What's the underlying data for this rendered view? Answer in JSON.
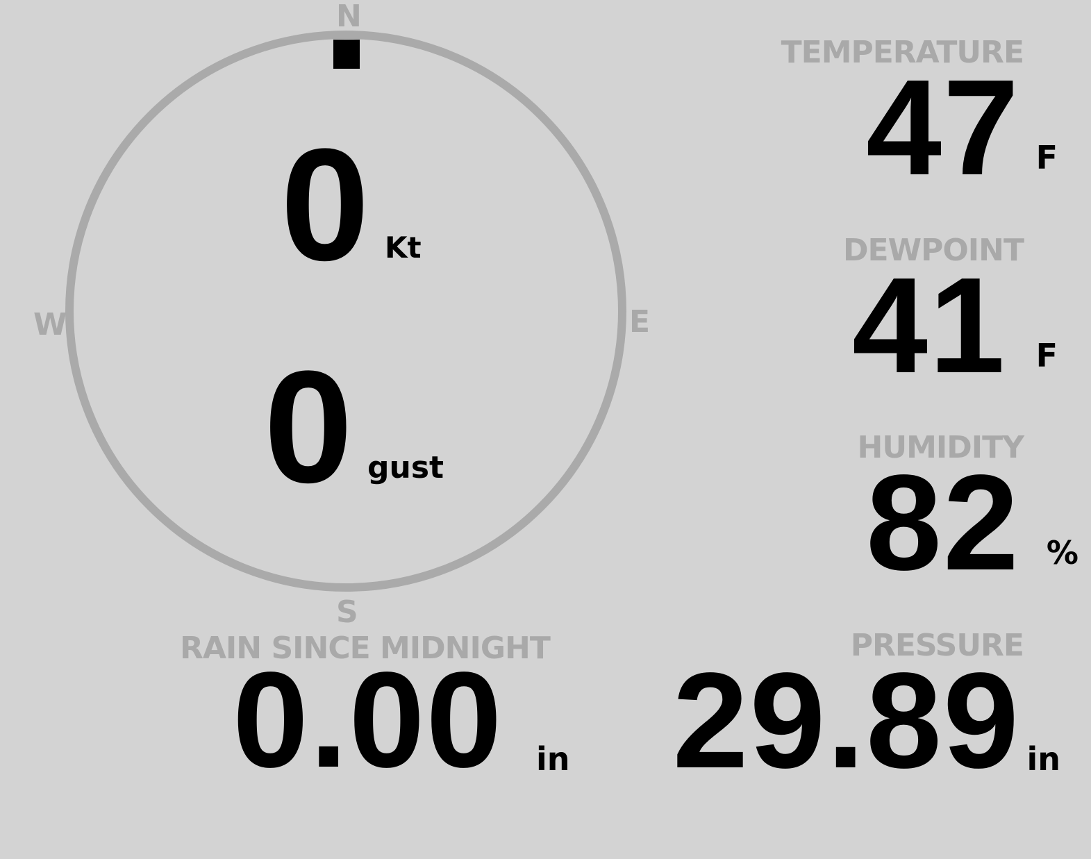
{
  "colors": {
    "background": "#d3d3d3",
    "ring": "#aaaaaa",
    "label": "#a9a9a9",
    "value": "#000000"
  },
  "wind": {
    "direction_deg": 0,
    "compass": {
      "n": "N",
      "e": "E",
      "s": "S",
      "w": "W"
    },
    "speed": "0",
    "speed_unit": "Kt",
    "gust": "0",
    "gust_unit": "gust"
  },
  "temperature": {
    "label": "TEMPERATURE",
    "value": "47",
    "unit": "F"
  },
  "dewpoint": {
    "label": "DEWPOINT",
    "value": "41",
    "unit": "F"
  },
  "humidity": {
    "label": "HUMIDITY",
    "value": "82",
    "unit": "%"
  },
  "pressure": {
    "label": "PRESSURE",
    "value": "29.89",
    "unit": "in"
  },
  "rain": {
    "label": "RAIN SINCE MIDNIGHT",
    "value": "0.00",
    "unit": "in"
  }
}
